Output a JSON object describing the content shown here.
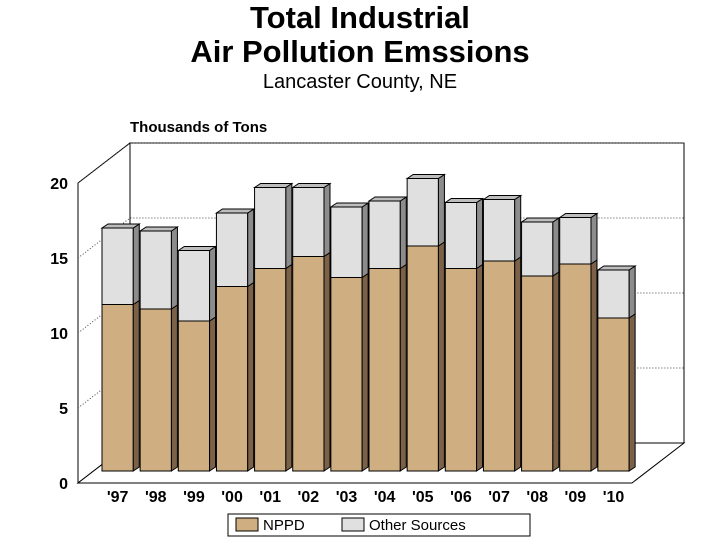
{
  "title_line1": "Total Industrial",
  "title_line2": "Air Pollution Emssions",
  "subtitle": "Lancaster County, NE",
  "colors": {
    "nppd": "#cfae82",
    "nppd_side": "#7a6147",
    "other": "#e0e0e0",
    "other_side": "#8c8c8c",
    "top": "#bdbdbd"
  },
  "chart_data": {
    "type": "bar",
    "stacked": true,
    "three_d": true,
    "ylabel": "Thousands of Tons",
    "xlabel": "",
    "ylim": [
      0,
      20
    ],
    "yticks": [
      0,
      5,
      10,
      15,
      20
    ],
    "grid": true,
    "legend_position": "bottom",
    "categories": [
      "'97",
      "'98",
      "'99",
      "'00",
      "'01",
      "'02",
      "'03",
      "'04",
      "'05",
      "'06",
      "'07",
      "'08",
      "'09",
      "'10"
    ],
    "series": [
      {
        "name": "NPPD",
        "values": [
          11.1,
          10.8,
          10.0,
          12.3,
          13.5,
          14.3,
          12.9,
          13.5,
          15.0,
          13.5,
          14.0,
          13.0,
          13.8,
          10.2
        ]
      },
      {
        "name": "Other Sources",
        "values": [
          5.1,
          5.2,
          4.7,
          4.9,
          5.4,
          4.6,
          4.7,
          4.5,
          4.5,
          4.4,
          4.1,
          3.6,
          3.1,
          3.2
        ]
      }
    ]
  }
}
